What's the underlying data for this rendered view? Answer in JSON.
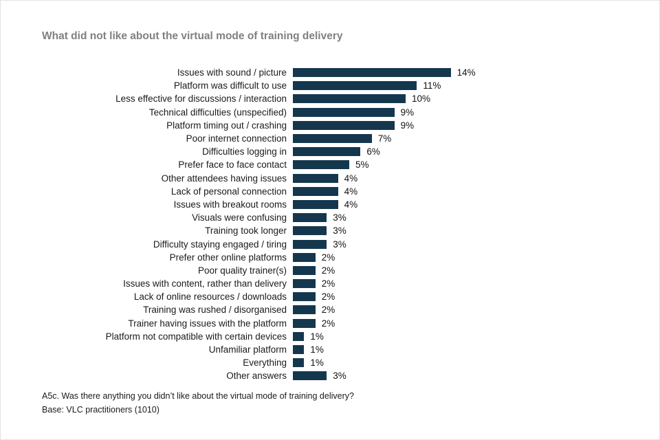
{
  "page": {
    "title": "What did not like about the virtual mode of training delivery",
    "footer": {
      "question": "A5c. Was there anything you didn’t like about the virtual mode of training delivery?",
      "base": "Base: VLC practitioners (1010)"
    }
  },
  "colors": {
    "bar": "#14374e",
    "title_text": "#808080",
    "label_text": "#1a1a1a"
  },
  "chart_data": {
    "type": "bar",
    "orientation": "horizontal",
    "title": "What did not like about the virtual mode of training delivery",
    "xlabel": "",
    "ylabel": "",
    "unit": "%",
    "xlim": [
      0,
      15
    ],
    "grid": false,
    "legend": false,
    "categories": [
      "Issues with sound / picture",
      "Platform was difficult to use",
      "Less effective for discussions / interaction",
      "Technical difficulties (unspecified)",
      "Platform timing out / crashing",
      "Poor internet connection",
      "Difficulties logging in",
      "Prefer face to face contact",
      "Other attendees having issues",
      "Lack of personal connection",
      "Issues with breakout rooms",
      "Visuals were confusing",
      "Training took longer",
      "Difficulty staying engaged / tiring",
      "Prefer other online platforms",
      "Poor quality trainer(s)",
      "Issues with content, rather than delivery",
      "Lack of online resources / downloads",
      "Training was rushed / disorganised",
      "Trainer having issues with the platform",
      "Platform not compatible with certain devices",
      "Unfamiliar platform",
      "Everything",
      "Other answers"
    ],
    "values": [
      14,
      11,
      10,
      9,
      9,
      7,
      6,
      5,
      4,
      4,
      4,
      3,
      3,
      3,
      2,
      2,
      2,
      2,
      2,
      2,
      1,
      1,
      1,
      3
    ],
    "value_labels": [
      "14%",
      "11%",
      "10%",
      "9%",
      "9%",
      "7%",
      "6%",
      "5%",
      "4%",
      "4%",
      "4%",
      "3%",
      "3%",
      "3%",
      "2%",
      "2%",
      "2%",
      "2%",
      "2%",
      "2%",
      "1%",
      "1%",
      "1%",
      "3%"
    ]
  }
}
